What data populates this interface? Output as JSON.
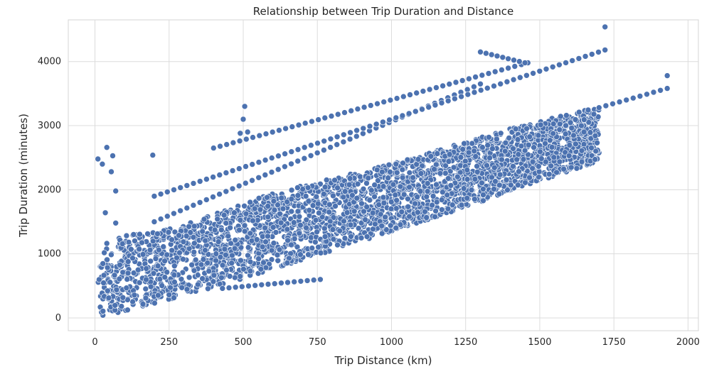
{
  "chart_data": {
    "type": "scatter",
    "title": "Relationship between Trip Duration and Distance",
    "xlabel": "Trip Distance (km)",
    "ylabel": "Trip Duration (minutes)",
    "xlim": [
      -90,
      2035
    ],
    "ylim": [
      -200,
      4650
    ],
    "xticks": [
      0,
      250,
      500,
      750,
      1000,
      1250,
      1500,
      1750,
      2000
    ],
    "yticks": [
      0,
      1000,
      2000,
      3000,
      4000
    ],
    "xtick_labels": [
      "0",
      "250",
      "500",
      "750",
      "1000",
      "1250",
      "1500",
      "1750",
      "2000"
    ],
    "ytick_labels": [
      "0",
      "1000",
      "2000",
      "3000",
      "4000"
    ],
    "grid": true,
    "legend": "none",
    "point_color": "#4c72b0",
    "point_edge_color": "#ffffff",
    "point_count": 3000,
    "main_band": {
      "description": "dense cloud of trips between a lower and upper envelope",
      "x_range": [
        10,
        1700
      ],
      "lower_envelope": [
        [
          10,
          0
        ],
        [
          400,
          470
        ],
        [
          800,
          1050
        ],
        [
          1200,
          1650
        ],
        [
          1700,
          2450
        ]
      ],
      "upper_envelope": [
        [
          10,
          1200
        ],
        [
          300,
          1450
        ],
        [
          600,
          1950
        ],
        [
          1000,
          2400
        ],
        [
          1400,
          2950
        ],
        [
          1700,
          3300
        ]
      ]
    },
    "line_series": [
      {
        "name": "upper line 1",
        "x": [
          200,
          1300
        ],
        "y": [
          1500,
          3650
        ]
      },
      {
        "name": "upper line 2",
        "x": [
          200,
          1720
        ],
        "y": [
          1900,
          4180
        ]
      },
      {
        "name": "upper line 3",
        "x": [
          400,
          1460
        ],
        "y": [
          2650,
          3980
        ]
      },
      {
        "name": "upper line 4",
        "x": [
          1300,
          1450
        ],
        "y": [
          4150,
          3980
        ]
      },
      {
        "name": "long tail",
        "x": [
          1700,
          1930
        ],
        "y": [
          3280,
          3580
        ]
      },
      {
        "name": "lower line",
        "x": [
          430,
          760
        ],
        "y": [
          460,
          600
        ]
      }
    ],
    "points": [
      {
        "x": 10,
        "y": 2480
      },
      {
        "x": 25,
        "y": 2400
      },
      {
        "x": 40,
        "y": 2660
      },
      {
        "x": 55,
        "y": 2280
      },
      {
        "x": 60,
        "y": 2530
      },
      {
        "x": 70,
        "y": 1980
      },
      {
        "x": 35,
        "y": 1640
      },
      {
        "x": 70,
        "y": 1480
      },
      {
        "x": 195,
        "y": 2540
      },
      {
        "x": 505,
        "y": 3300
      },
      {
        "x": 500,
        "y": 3100
      },
      {
        "x": 515,
        "y": 2900
      },
      {
        "x": 490,
        "y": 2880
      },
      {
        "x": 1300,
        "y": 4150
      },
      {
        "x": 1720,
        "y": 4540
      },
      {
        "x": 1930,
        "y": 3780
      },
      {
        "x": 1930,
        "y": 3580
      },
      {
        "x": 760,
        "y": 600
      }
    ]
  }
}
